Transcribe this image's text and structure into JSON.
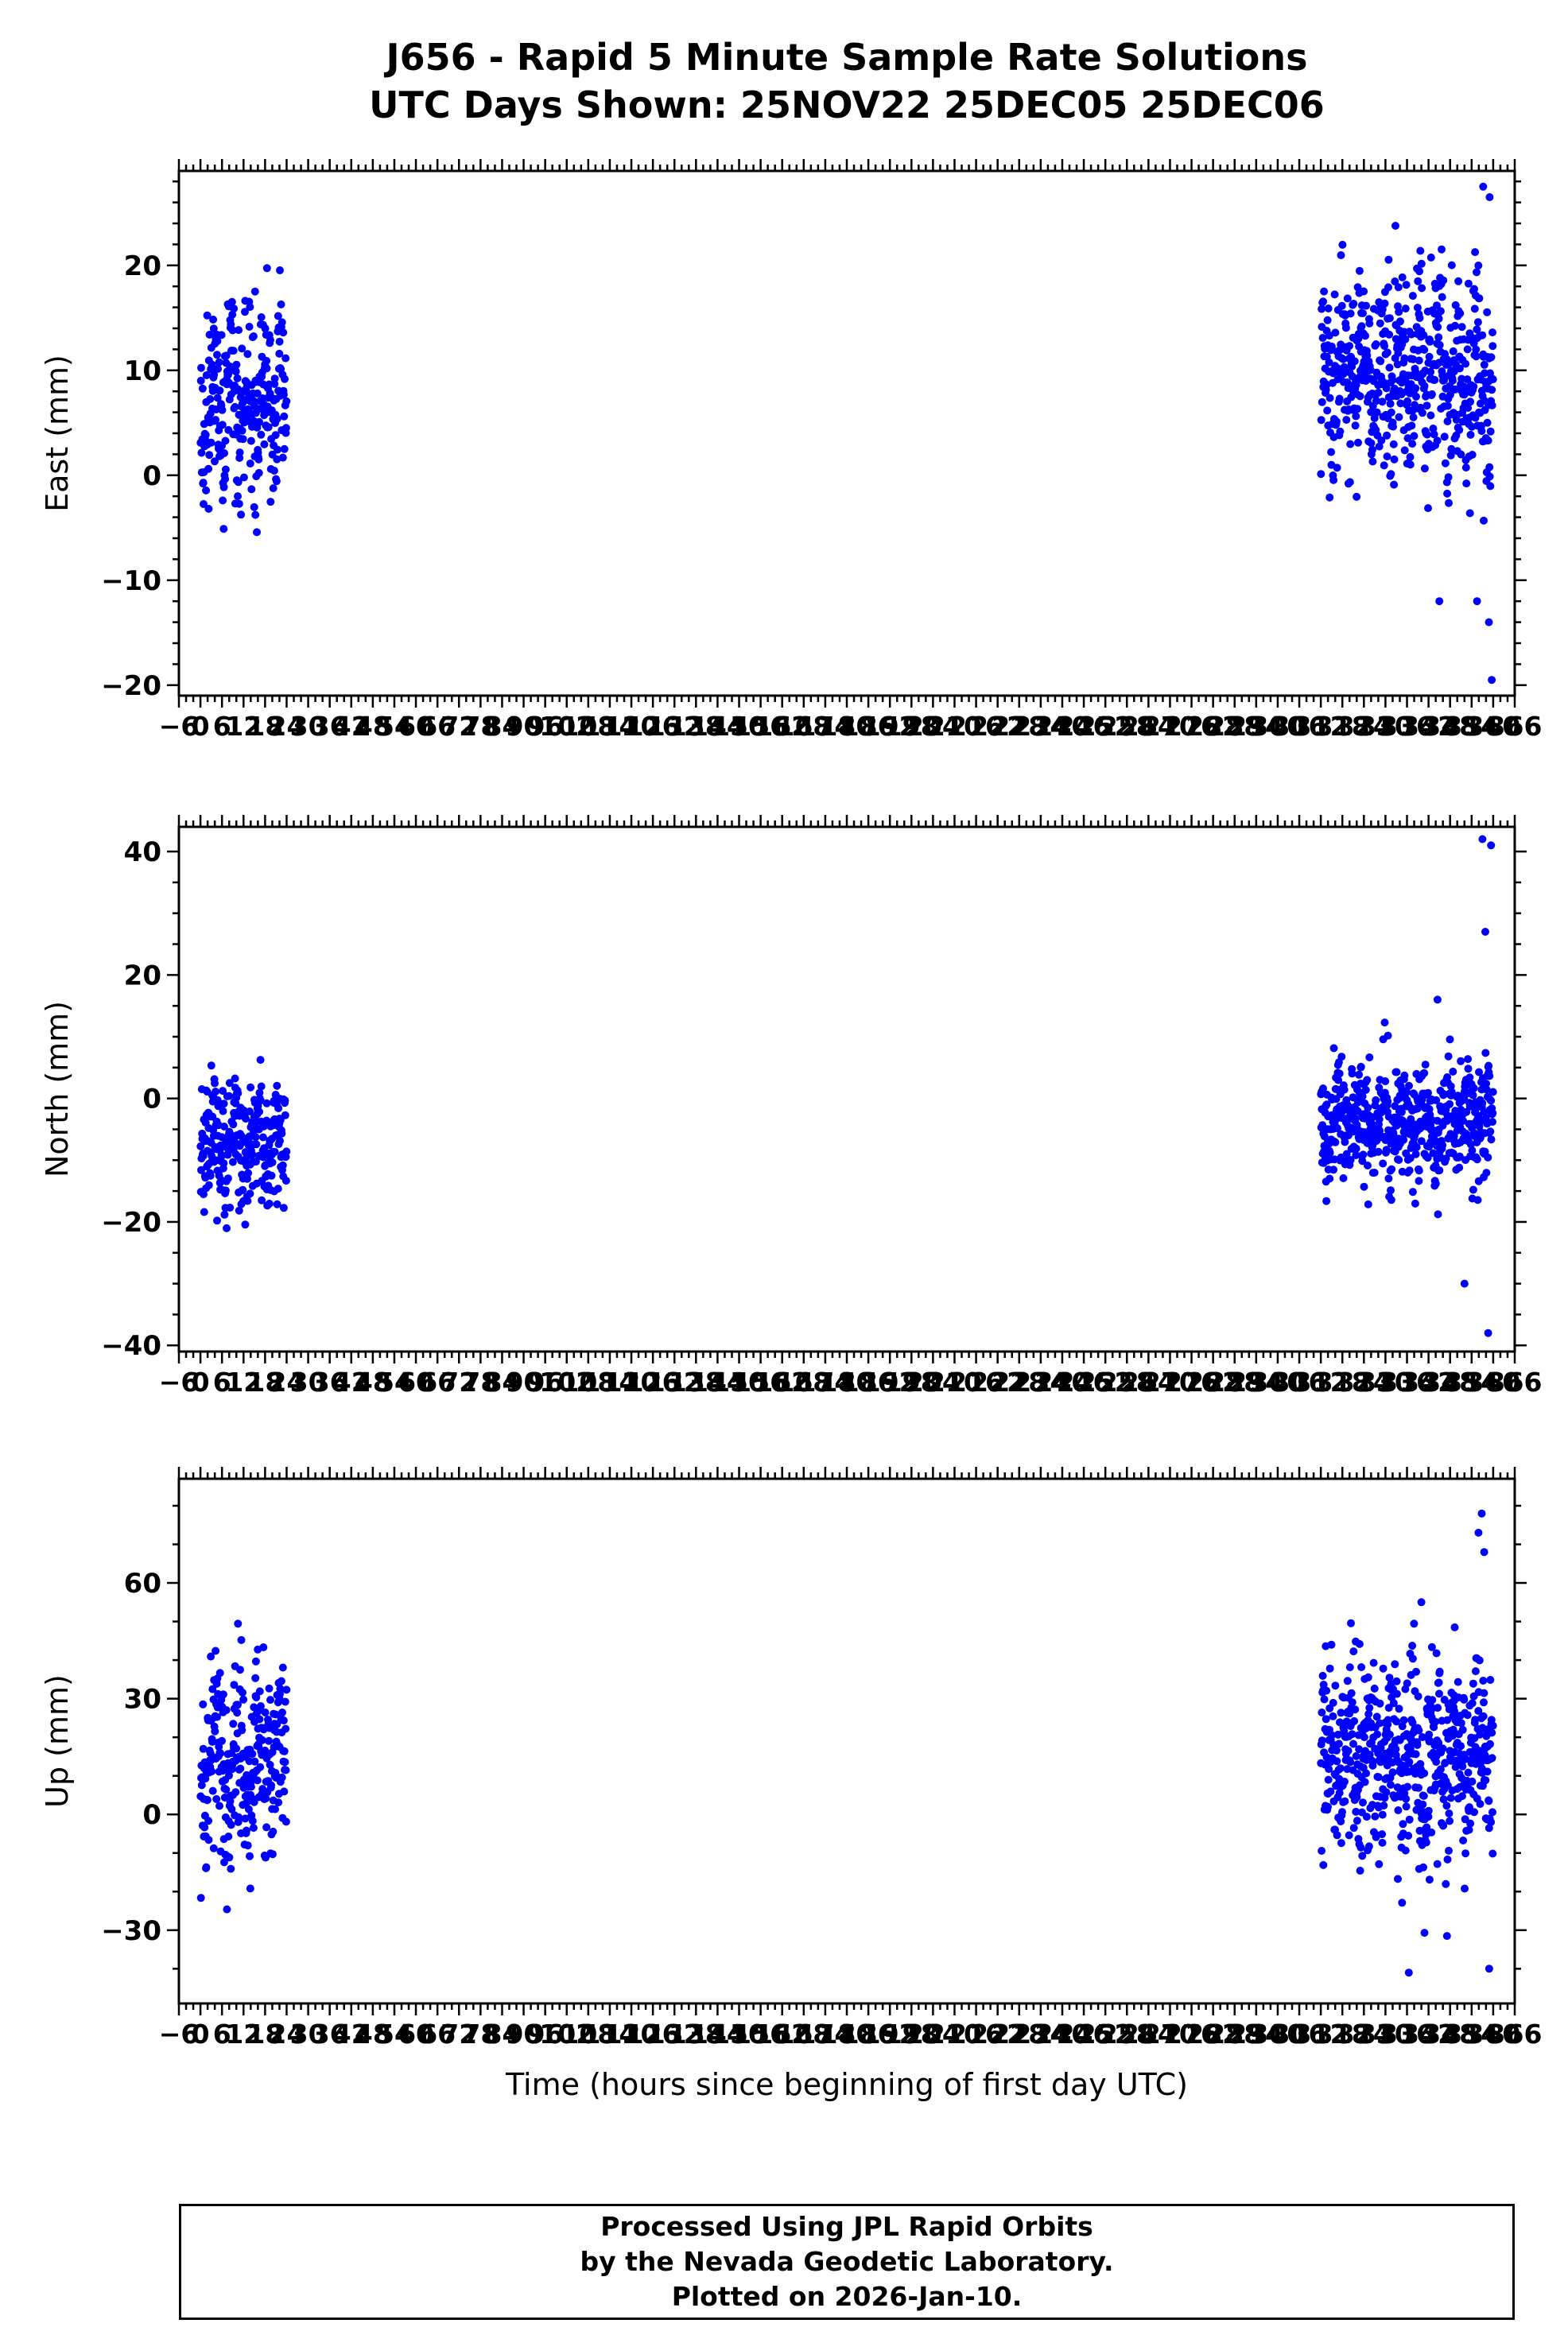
{
  "title": {
    "line1": "J656 - Rapid 5 Minute Sample Rate Solutions",
    "line2": "UTC Days Shown:  25NOV22 25DEC05 25DEC06"
  },
  "xlabel": "Time (hours since beginning of first day UTC)",
  "footer": {
    "line1": "Processed Using JPL Rapid Orbits",
    "line2": "by the Nevada Geodetic Laboratory.",
    "line3": "Plotted on 2026-Jan-10."
  },
  "point_color": "#0000ff",
  "station": "J656",
  "utc_days_shown": [
    "25NOV22",
    "25DEC05",
    "25DEC06"
  ],
  "chart_data": [
    {
      "type": "scatter",
      "name": "east",
      "ylabel": "East (mm)",
      "ylim": [
        -21,
        29
      ],
      "yticks": [
        -20,
        -10,
        0,
        10,
        20
      ],
      "ytick_minor_step": 2,
      "xlim": [
        -6,
        366
      ],
      "xtick_major_step": 6,
      "xtick_minor_step": 2,
      "seed": 11,
      "clusters": [
        {
          "x_start": 0,
          "x_end": 24,
          "n": 288,
          "mean": 7,
          "sd": 4.2,
          "min": -6,
          "max": 20,
          "wave_amp": 3,
          "wave_cycles": 5
        },
        {
          "x_start": 312,
          "x_end": 360,
          "n": 576,
          "mean": 9.5,
          "sd": 4.5,
          "min": -6,
          "max": 24,
          "wave_amp": 3,
          "wave_cycles": 9
        }
      ],
      "outliers": [
        [
          357.2,
          27.5
        ],
        [
          359.0,
          26.5
        ],
        [
          355.5,
          -12
        ],
        [
          358.8,
          -14
        ],
        [
          359.6,
          -19.5
        ],
        [
          345.0,
          -12
        ]
      ]
    },
    {
      "type": "scatter",
      "name": "north",
      "ylabel": "North (mm)",
      "ylim": [
        -41,
        44
      ],
      "yticks": [
        -40,
        -20,
        0,
        20,
        40
      ],
      "ytick_minor_step": 5,
      "xlim": [
        -6,
        366
      ],
      "xtick_major_step": 6,
      "xtick_minor_step": 2,
      "seed": 22,
      "clusters": [
        {
          "x_start": 0,
          "x_end": 24,
          "n": 288,
          "mean": -7,
          "sd": 5.0,
          "min": -22,
          "max": 11,
          "wave_amp": 3,
          "wave_cycles": 4
        },
        {
          "x_start": 312,
          "x_end": 360,
          "n": 576,
          "mean": -4,
          "sd": 4.5,
          "min": -22,
          "max": 14,
          "wave_amp": 2.5,
          "wave_cycles": 8
        }
      ],
      "outliers": [
        [
          357.0,
          42
        ],
        [
          359.4,
          41
        ],
        [
          357.8,
          27
        ],
        [
          344.5,
          16
        ],
        [
          358.6,
          -38
        ],
        [
          352.0,
          -30
        ]
      ]
    },
    {
      "type": "scatter",
      "name": "up",
      "ylabel": "Up (mm)",
      "ylim": [
        -49,
        87
      ],
      "yticks": [
        -30,
        0,
        30,
        60
      ],
      "ytick_minor_step": 10,
      "xlim": [
        -6,
        366
      ],
      "xtick_major_step": 6,
      "xtick_minor_step": 2,
      "seed": 33,
      "clusters": [
        {
          "x_start": 0,
          "x_end": 24,
          "n": 288,
          "mean": 14,
          "sd": 12,
          "min": -27,
          "max": 60,
          "wave_amp": 8,
          "wave_cycles": 4
        },
        {
          "x_start": 312,
          "x_end": 360,
          "n": 576,
          "mean": 14,
          "sd": 12,
          "min": -38,
          "max": 62,
          "wave_amp": 8,
          "wave_cycles": 8
        }
      ],
      "outliers": [
        [
          356.8,
          78
        ],
        [
          355.9,
          73
        ],
        [
          357.5,
          68
        ],
        [
          336.5,
          -41
        ],
        [
          358.9,
          -40
        ],
        [
          340.0,
          55
        ]
      ]
    }
  ]
}
